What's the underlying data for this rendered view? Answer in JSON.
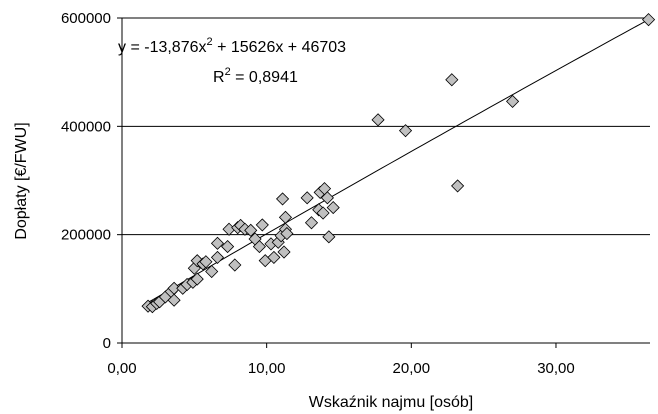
{
  "chart_data": {
    "type": "scatter",
    "title": "",
    "xlabel": "Wskaźnik najmu [osób]",
    "ylabel": "Dopłaty [€/FWU]",
    "xlim": [
      0,
      36.5
    ],
    "ylim": [
      0,
      600000
    ],
    "x_ticks": [
      0,
      10,
      20,
      30
    ],
    "x_tick_labels": [
      "0,00",
      "10,00",
      "20,00",
      "30,00"
    ],
    "y_ticks": [
      0,
      200000,
      400000,
      600000
    ],
    "y_tick_labels": [
      "0",
      "200000",
      "400000",
      "600000"
    ],
    "grid": {
      "horizontal": true,
      "vertical": false
    },
    "legend": "none",
    "marker": {
      "shape": "diamond",
      "fill": "#c0c0c0",
      "stroke": "#000000"
    },
    "trendline": {
      "type": "polynomial",
      "a": -13.876,
      "b": 15626,
      "c": 46703,
      "equation_parts": [
        "y = -13,876x",
        "2",
        " + 15626x + 46703"
      ],
      "r2_parts": [
        "R",
        "2",
        " = 0,8941"
      ]
    },
    "points": [
      {
        "x": 1.8,
        "y": 68000
      },
      {
        "x": 2.1,
        "y": 67000
      },
      {
        "x": 2.4,
        "y": 73000
      },
      {
        "x": 2.6,
        "y": 76000
      },
      {
        "x": 3.0,
        "y": 85000
      },
      {
        "x": 3.4,
        "y": 95000
      },
      {
        "x": 3.6,
        "y": 101000
      },
      {
        "x": 3.6,
        "y": 79000
      },
      {
        "x": 4.2,
        "y": 101000
      },
      {
        "x": 4.5,
        "y": 108000
      },
      {
        "x": 4.9,
        "y": 112000
      },
      {
        "x": 5.2,
        "y": 118000
      },
      {
        "x": 5.0,
        "y": 138000
      },
      {
        "x": 5.2,
        "y": 152000
      },
      {
        "x": 5.6,
        "y": 146000
      },
      {
        "x": 5.8,
        "y": 150000
      },
      {
        "x": 6.2,
        "y": 132000
      },
      {
        "x": 6.6,
        "y": 158000
      },
      {
        "x": 6.6,
        "y": 184000
      },
      {
        "x": 7.3,
        "y": 178000
      },
      {
        "x": 7.4,
        "y": 210000
      },
      {
        "x": 7.8,
        "y": 144000
      },
      {
        "x": 8.0,
        "y": 213000
      },
      {
        "x": 8.2,
        "y": 217000
      },
      {
        "x": 8.5,
        "y": 210000
      },
      {
        "x": 8.9,
        "y": 208000
      },
      {
        "x": 9.2,
        "y": 192000
      },
      {
        "x": 9.5,
        "y": 178000
      },
      {
        "x": 9.7,
        "y": 218000
      },
      {
        "x": 9.9,
        "y": 152000
      },
      {
        "x": 10.3,
        "y": 183000
      },
      {
        "x": 10.5,
        "y": 158000
      },
      {
        "x": 10.8,
        "y": 186000
      },
      {
        "x": 11.0,
        "y": 198000
      },
      {
        "x": 11.1,
        "y": 266000
      },
      {
        "x": 11.2,
        "y": 168000
      },
      {
        "x": 11.3,
        "y": 232000
      },
      {
        "x": 11.3,
        "y": 210000
      },
      {
        "x": 11.4,
        "y": 202000
      },
      {
        "x": 12.8,
        "y": 268000
      },
      {
        "x": 13.1,
        "y": 222000
      },
      {
        "x": 13.6,
        "y": 246000
      },
      {
        "x": 13.7,
        "y": 278000
      },
      {
        "x": 13.9,
        "y": 240000
      },
      {
        "x": 14.0,
        "y": 285000
      },
      {
        "x": 14.2,
        "y": 268000
      },
      {
        "x": 14.3,
        "y": 196000
      },
      {
        "x": 14.6,
        "y": 250000
      },
      {
        "x": 17.7,
        "y": 412000
      },
      {
        "x": 19.6,
        "y": 392000
      },
      {
        "x": 22.8,
        "y": 486000
      },
      {
        "x": 23.2,
        "y": 290000
      },
      {
        "x": 27.0,
        "y": 446000
      },
      {
        "x": 36.4,
        "y": 597000
      }
    ]
  }
}
